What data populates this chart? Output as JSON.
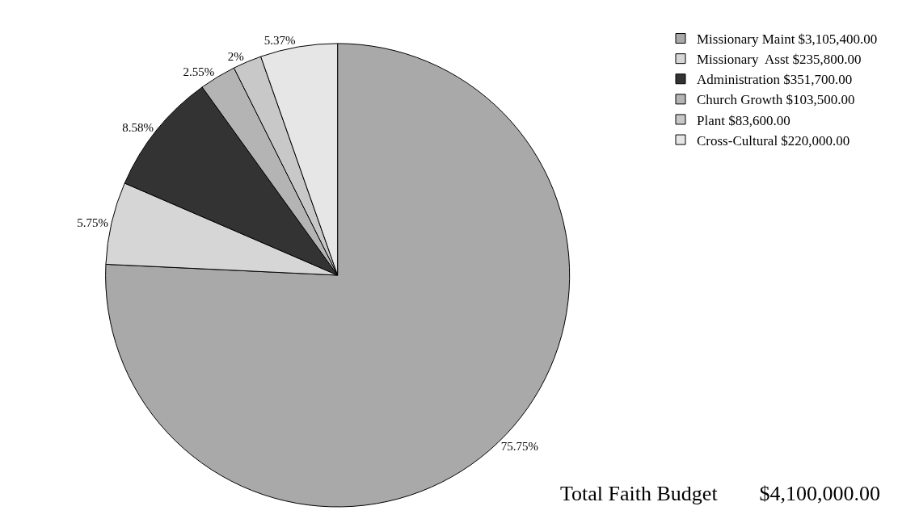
{
  "chart_data": {
    "type": "pie",
    "categories": [
      "Missionary Maint $3,105,400.00",
      "Missionary  Asst $235,800.00",
      "Administration $351,700.00",
      "Church Growth $103,500.00",
      "Plant $83,600.00",
      "Cross-Cultural $220,000.00"
    ],
    "values": [
      75.75,
      5.75,
      8.58,
      2.55,
      2,
      5.37
    ],
    "value_labels": [
      "75.75%",
      "5.75%",
      "8.58%",
      "2.55%",
      "2%",
      "5.37%"
    ],
    "colors": [
      "#a9a9a9",
      "#d6d6d6",
      "#333333",
      "#b4b4b4",
      "#c8c8c8",
      "#e6e6e6"
    ],
    "legend": "top right",
    "annotations": [
      "Total Faith Budget        $4,100,000.00"
    ]
  }
}
